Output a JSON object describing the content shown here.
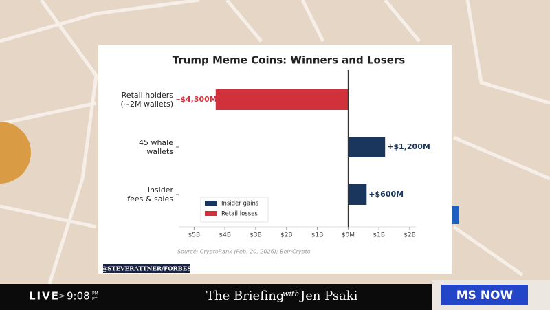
{
  "chart_data": {
    "type": "hbar",
    "title": "Trump Meme Coins: Winners and Losers",
    "categories": [
      "Retail holders\n(~2M wallets)",
      "45 whale\nwallets",
      "Insider\nfees & sales"
    ],
    "series": [
      {
        "name": "Insider gains",
        "color": "#1b365d",
        "values": [
          null,
          1.2,
          0.6
        ],
        "value_labels": [
          null,
          "+$1,200M",
          "+$600M"
        ]
      },
      {
        "name": "Retail losses",
        "color": "#d1313a",
        "values": [
          -4.3,
          null,
          null
        ],
        "value_labels": [
          "-$4,300M",
          null,
          null
        ]
      }
    ],
    "xlim": [
      -5.5,
      2.2
    ],
    "xticks": [
      {
        "value": -5,
        "label": "$5B"
      },
      {
        "value": -4,
        "label": "$4B"
      },
      {
        "value": -3,
        "label": "$3B"
      },
      {
        "value": -2,
        "label": "$2B"
      },
      {
        "value": -1,
        "label": "$1B"
      },
      {
        "value": 0,
        "label": "$0M"
      },
      {
        "value": 1,
        "label": "$1B"
      },
      {
        "value": 2,
        "label": "$2B"
      }
    ],
    "grid": false,
    "legend": "lower left",
    "source": "Source: CryptoRank (Feb. 20, 2026); BeInCrypto"
  },
  "broadcast": {
    "credit": "@STEVERATTNER/FORBES",
    "live": "LIVE",
    "time": "9:08",
    "meridiem": "PM",
    "zone": "ET",
    "show": "The Briefing",
    "with": "with",
    "host": "Jen Psaki",
    "network": "MS NOW"
  }
}
